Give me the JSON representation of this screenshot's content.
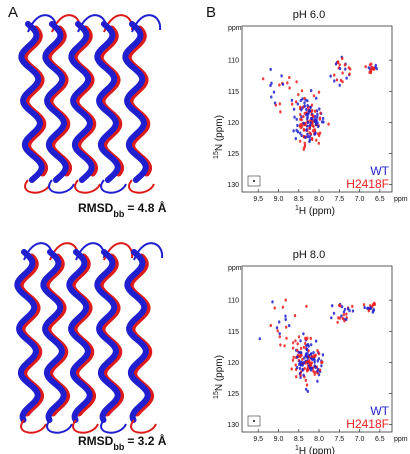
{
  "panel_a": {
    "label": "A",
    "structures": [
      {
        "label": "RMSD",
        "subscript": "bb",
        "value": "= 4.8 Å"
      },
      {
        "label": "RMSD",
        "subscript": "bb",
        "value": "= 3.2 Å"
      }
    ]
  },
  "panel_b": {
    "label": "B",
    "spectra": [
      {
        "title": "pH 6.0",
        "unit": "ppm",
        "x_label_sup": "1",
        "x_label": "H (ppm)",
        "y_label_sup": "15",
        "y_label": "N (ppm)",
        "xlim": [
          9.9,
          6.2
        ],
        "ylim": [
          104.5,
          131.2
        ],
        "xticks": [
          9.5,
          {
            "value": 9,
            "label": "9.0"
          },
          8.5,
          {
            "value": 8,
            "label": "8.0"
          },
          7.5,
          {
            "value": 7,
            "label": "7.0"
          },
          6.5
        ],
        "yticks": [
          110,
          115,
          120,
          125,
          130
        ],
        "legend": [
          {
            "name": "WT",
            "color": "#1f1fd0"
          },
          {
            "name": "H2418F",
            "color": "#ee1c1c"
          }
        ]
      },
      {
        "title": "pH 8.0",
        "unit": "ppm",
        "x_label_sup": "1",
        "x_label": "H (ppm)",
        "y_label_sup": "15",
        "y_label": "N (ppm)",
        "xlim": [
          9.9,
          6.2
        ],
        "ylim": [
          104.5,
          131.2
        ],
        "xticks": [
          9.5,
          {
            "value": 9,
            "label": "9.0"
          },
          8.5,
          {
            "value": 8,
            "label": "8.0"
          },
          7.5,
          {
            "value": 7,
            "label": "7.0"
          },
          6.5
        ],
        "yticks": [
          110,
          115,
          120,
          125,
          130
        ],
        "legend": [
          {
            "name": "WT",
            "color": "#1f1fd0"
          },
          {
            "name": "H2418F",
            "color": "#ee1c1c"
          }
        ]
      }
    ]
  }
}
